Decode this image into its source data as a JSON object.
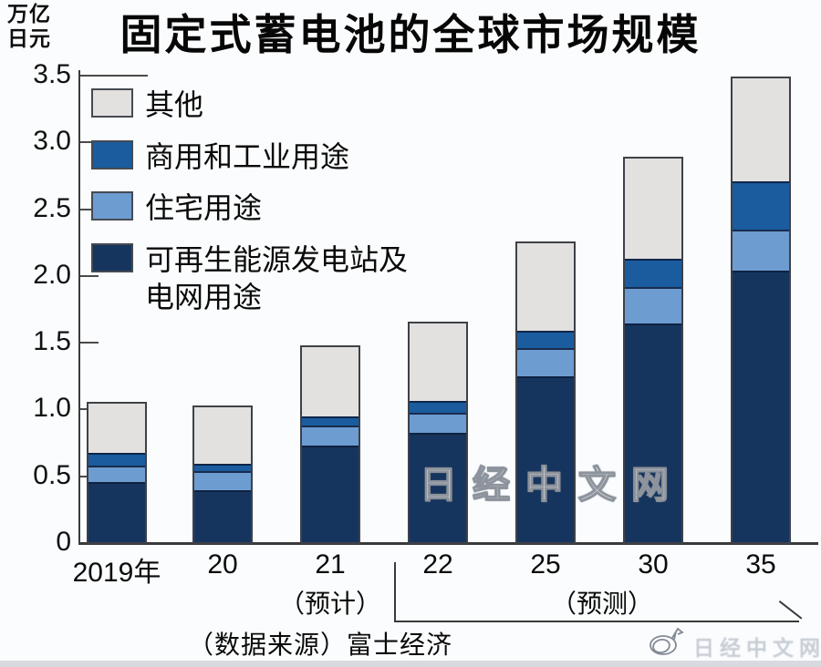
{
  "page": {
    "title": "固定式蓄电池的全球市场规模",
    "unit_label": "万亿\n日元",
    "source": "（数据来源）富士经济",
    "watermark_center": "日经中文网",
    "watermark_corner": "日经中文网",
    "watermark_corner_icon": "scribble-logo-icon"
  },
  "legend": {
    "items": [
      {
        "label": "其他",
        "color": "#e2e1df"
      },
      {
        "label": "商用和工业用途",
        "color": "#1a5c9e"
      },
      {
        "label": "住宅用途",
        "color": "#6d9cd1"
      },
      {
        "label": "可再生能源发电站及\n电网用途",
        "color": "#16355e"
      }
    ]
  },
  "annotations": {
    "note_2021": "（预计）",
    "note_forecast_range": "（预测）"
  },
  "chart_data": {
    "type": "bar",
    "stacked": true,
    "title": "固定式蓄电池的全球市场规模",
    "unit": "万亿日元",
    "xlabel": "",
    "ylabel": "万亿日元",
    "ylim": [
      0,
      3.5
    ],
    "grid": false,
    "legend_position": "upper-left",
    "categories": [
      "2019年",
      "20",
      "21",
      "22",
      "25",
      "30",
      "35"
    ],
    "category_notes": {
      "21": "（预计）",
      "22_35": "（预测）"
    },
    "yticks": {
      "values": [
        0,
        0.5,
        1.0,
        1.5,
        2.0,
        2.5,
        3.0,
        3.5
      ],
      "labels": [
        "0",
        "0.5",
        "1.0",
        "1.5",
        "2.0",
        "2.5",
        "3.0",
        "3.5"
      ]
    },
    "series": [
      {
        "name": "可再生能源发电站及电网用途",
        "color": "#16355e",
        "values": [
          0.45,
          0.39,
          0.72,
          0.82,
          1.24,
          1.64,
          2.03
        ]
      },
      {
        "name": "住宅用途",
        "color": "#6d9cd1",
        "values": [
          0.12,
          0.14,
          0.15,
          0.15,
          0.21,
          0.27,
          0.31
        ]
      },
      {
        "name": "商用和工业用途",
        "color": "#1a5c9e",
        "values": [
          0.1,
          0.06,
          0.07,
          0.09,
          0.13,
          0.21,
          0.36
        ]
      },
      {
        "name": "其他",
        "color": "#e2e1df",
        "values": [
          0.37,
          0.42,
          0.52,
          0.58,
          0.66,
          0.75,
          0.77
        ]
      }
    ],
    "totals": [
      1.04,
      1.01,
      1.46,
      1.64,
      2.24,
      2.87,
      3.47
    ],
    "source": "（数据来源）富士经济"
  }
}
